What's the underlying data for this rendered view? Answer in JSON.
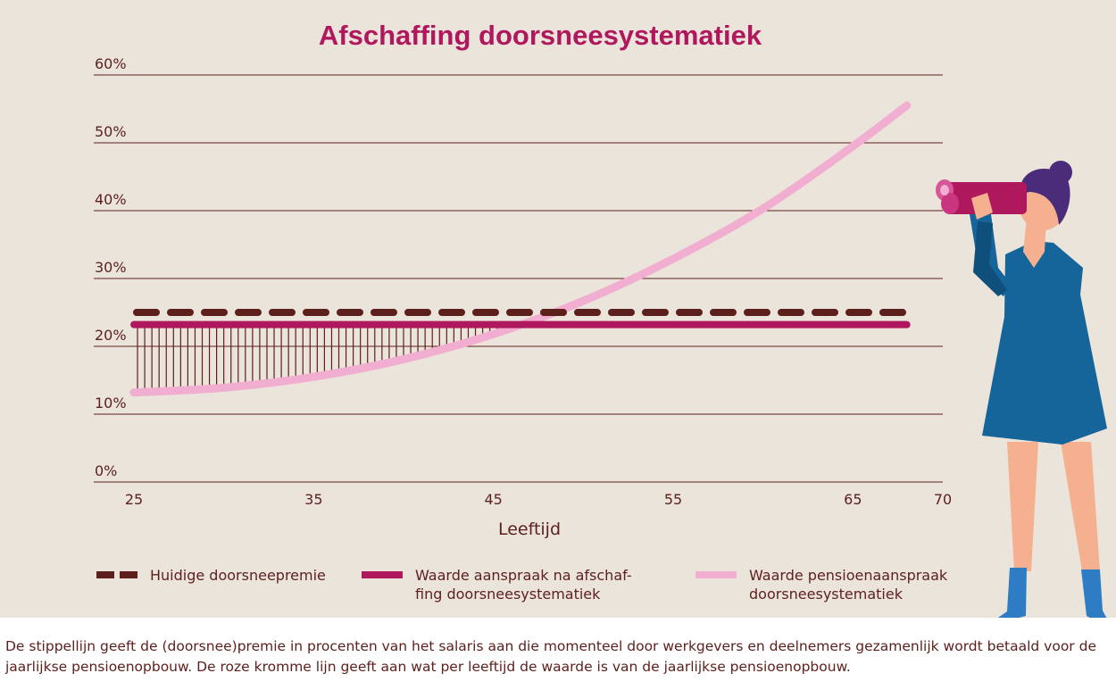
{
  "colors": {
    "background": "#ebe4db",
    "title": "#b0185e",
    "text": "#5c1f1c",
    "grid": "#5c1f1c",
    "dashed": "#5c1f1c",
    "magenta": "#b0185e",
    "pink": "#f2aed0",
    "hatch": "#5c1f1c"
  },
  "chart_data": {
    "type": "line",
    "title": "Afschaffing doorsneesystematiek",
    "xlabel": "Leeftijd",
    "x_ticks": [
      "25",
      "35",
      "45",
      "55",
      "65",
      "70"
    ],
    "y_ticks": [
      "0%",
      "10%",
      "20%",
      "30%",
      "40%",
      "50%",
      "60%"
    ],
    "xlim": [
      25,
      70
    ],
    "ylim": [
      0,
      60
    ],
    "grid": true,
    "legend_position": "bottom",
    "series": [
      {
        "name": "Huidige doorsneepremie",
        "style": "dashed",
        "color": "#5c1f1c",
        "x": [
          25,
          68
        ],
        "y": [
          25,
          25
        ]
      },
      {
        "name": "Waarde aanspraak na afschaf-\nfing doorsneesystematiek",
        "style": "solid",
        "color": "#b0185e",
        "x": [
          25,
          68
        ],
        "y": [
          23.2,
          23.2
        ]
      },
      {
        "name": "Waarde pensioenaanspraak\ndoorsneesystematiek",
        "style": "solid",
        "color": "#f2aed0",
        "x": [
          25,
          30,
          35,
          40,
          45,
          50,
          55,
          60,
          65,
          68
        ],
        "y": [
          13.2,
          13.9,
          15.5,
          18.1,
          21.8,
          26.7,
          32.9,
          40.3,
          49.5,
          55.5
        ]
      }
    ]
  },
  "caption": "De stippellijn geeft de (doorsnee)premie in procenten van het salaris aan die momenteel door werkgevers en deelnemers gezamenlijk wordt betaald voor de jaarlijkse pensioenopbouw. De roze kromme lijn geeft aan wat per leeftijd de waarde is van de jaarlijkse pensioenopbouw.",
  "illustration": {
    "subject": "woman-with-binoculars",
    "dress": "#15649a",
    "hair": "#4a2c7a",
    "skin": "#f4b08f",
    "binoculars": "#b0185e",
    "shoes": "#2e7cc4"
  }
}
